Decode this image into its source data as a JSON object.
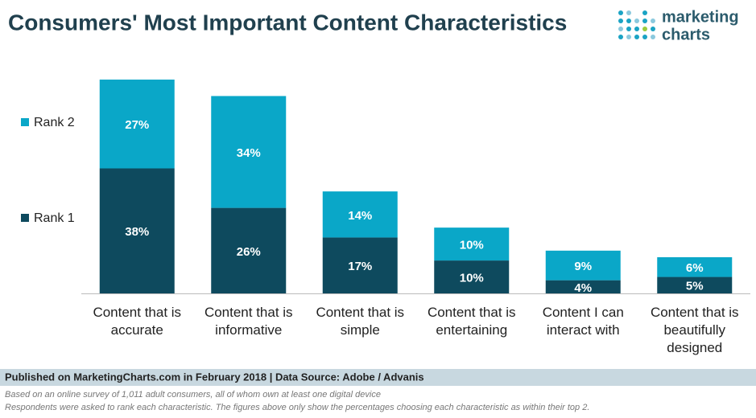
{
  "chart_data": {
    "type": "stacked-bar",
    "title": "Consumers' Most Important Content Characteristics",
    "categories": [
      "Content that is accurate",
      "Content that is informative",
      "Content that is simple",
      "Content that is entertaining",
      "Content I can interact with",
      "Content that is beautifully designed"
    ],
    "series": [
      {
        "name": "Rank 1",
        "color": "#0e4a5e",
        "values": [
          38,
          26,
          17,
          10,
          4,
          5
        ],
        "value_labels": [
          "38%",
          "26%",
          "17%",
          "10%",
          "4%",
          "5%"
        ]
      },
      {
        "name": "Rank 2",
        "color": "#0aa7c8",
        "values": [
          27,
          34,
          14,
          10,
          9,
          6
        ],
        "value_labels": [
          "27%",
          "34%",
          "14%",
          "10%",
          "9%",
          "6%"
        ]
      }
    ],
    "legend": "left"
  },
  "logo": {
    "line1": "marketing",
    "line2": "charts"
  },
  "footer": {
    "published": "Published on MarketingCharts.com in February 2018 | Data Source: Adobe / Advanis",
    "notes": [
      "Based on an online survey of 1,011 adult consumers, all of whom own at least one digital device",
      "Respondents were asked to rank each characteristic. The figures above only show the percentages choosing each characteristic as within their top 2."
    ]
  }
}
